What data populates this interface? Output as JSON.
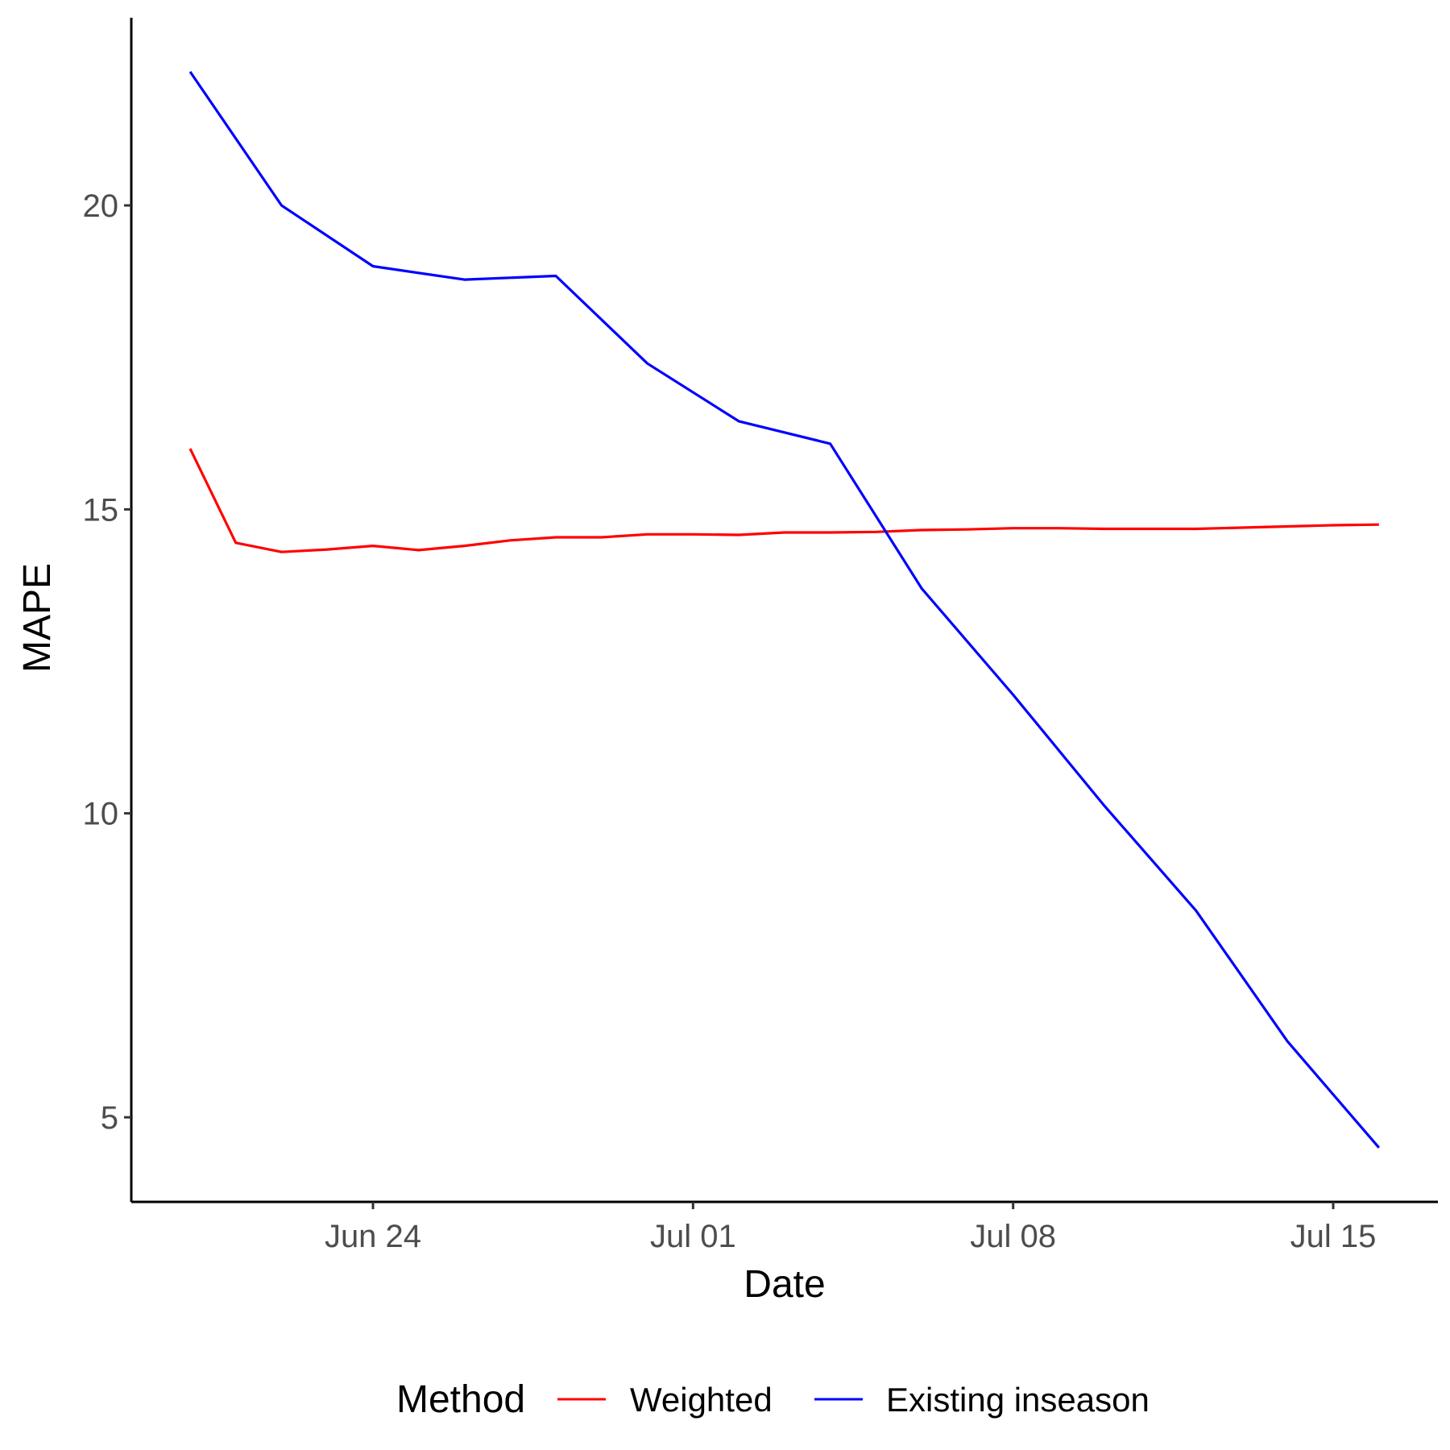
{
  "chart_data": {
    "type": "line",
    "xlabel": "Date",
    "ylabel": "MAPE",
    "x_type": "date",
    "x_ticks": [
      {
        "date": "2023-06-24",
        "label": "Jun 24"
      },
      {
        "date": "2023-07-01",
        "label": "Jul 01"
      },
      {
        "date": "2023-07-08",
        "label": "Jul 08"
      },
      {
        "date": "2023-07-15",
        "label": "Jul 15"
      }
    ],
    "y_ticks": [
      5,
      10,
      15,
      20
    ],
    "xlim": [
      "2023-06-18",
      "2023-07-17"
    ],
    "ylim": [
      3.6,
      23.1
    ],
    "grid": false,
    "legend": {
      "title": "Method",
      "position": "bottom"
    },
    "series": [
      {
        "name": "Weighted",
        "color": "#ff0000",
        "points": [
          {
            "x": "2023-06-20",
            "y": 16.0
          },
          {
            "x": "2023-06-21",
            "y": 14.45
          },
          {
            "x": "2023-06-22",
            "y": 14.3
          },
          {
            "x": "2023-06-23",
            "y": 14.34
          },
          {
            "x": "2023-06-24",
            "y": 14.4
          },
          {
            "x": "2023-06-25",
            "y": 14.33
          },
          {
            "x": "2023-06-26",
            "y": 14.4
          },
          {
            "x": "2023-06-27",
            "y": 14.49
          },
          {
            "x": "2023-06-28",
            "y": 14.54
          },
          {
            "x": "2023-06-29",
            "y": 14.54
          },
          {
            "x": "2023-06-30",
            "y": 14.59
          },
          {
            "x": "2023-07-01",
            "y": 14.59
          },
          {
            "x": "2023-07-02",
            "y": 14.58
          },
          {
            "x": "2023-07-03",
            "y": 14.62
          },
          {
            "x": "2023-07-04",
            "y": 14.62
          },
          {
            "x": "2023-07-05",
            "y": 14.63
          },
          {
            "x": "2023-07-06",
            "y": 14.66
          },
          {
            "x": "2023-07-07",
            "y": 14.67
          },
          {
            "x": "2023-07-08",
            "y": 14.69
          },
          {
            "x": "2023-07-09",
            "y": 14.69
          },
          {
            "x": "2023-07-10",
            "y": 14.68
          },
          {
            "x": "2023-07-11",
            "y": 14.68
          },
          {
            "x": "2023-07-12",
            "y": 14.68
          },
          {
            "x": "2023-07-13",
            "y": 14.7
          },
          {
            "x": "2023-07-14",
            "y": 14.72
          },
          {
            "x": "2023-07-15",
            "y": 14.74
          },
          {
            "x": "2023-07-16",
            "y": 14.75
          }
        ]
      },
      {
        "name": "Existing inseason",
        "color": "#0000ff",
        "points": [
          {
            "x": "2023-06-20",
            "y": 22.2
          },
          {
            "x": "2023-06-22",
            "y": 20.0
          },
          {
            "x": "2023-06-24",
            "y": 19.0
          },
          {
            "x": "2023-06-26",
            "y": 18.78
          },
          {
            "x": "2023-06-28",
            "y": 18.84
          },
          {
            "x": "2023-06-30",
            "y": 17.4
          },
          {
            "x": "2023-07-02",
            "y": 16.45
          },
          {
            "x": "2023-07-04",
            "y": 16.08
          },
          {
            "x": "2023-07-06",
            "y": 13.7
          },
          {
            "x": "2023-07-08",
            "y": 11.95
          },
          {
            "x": "2023-07-10",
            "y": 10.12
          },
          {
            "x": "2023-07-12",
            "y": 8.4
          },
          {
            "x": "2023-07-14",
            "y": 6.25
          },
          {
            "x": "2023-07-16",
            "y": 4.5
          }
        ]
      }
    ]
  }
}
